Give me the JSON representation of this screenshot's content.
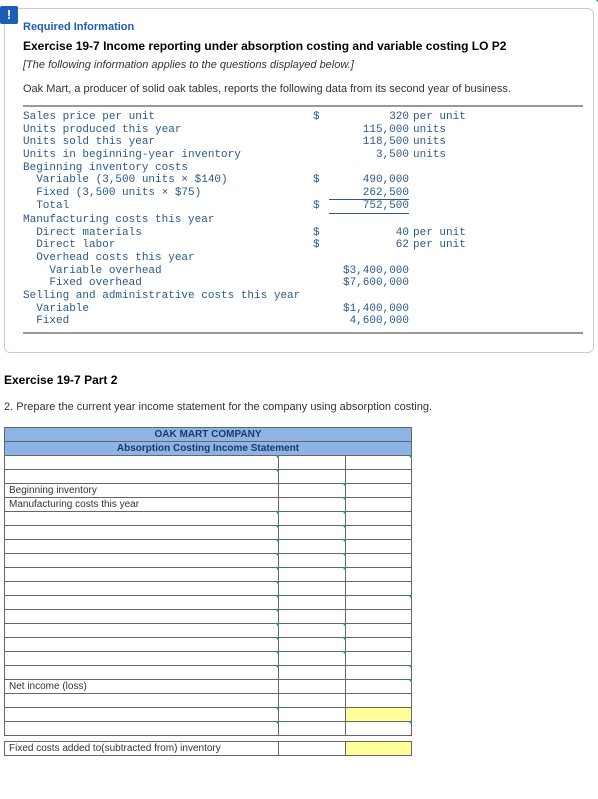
{
  "header": {
    "required": "Required Information",
    "title": "Exercise 19-7 Income reporting under absorption costing and variable costing LO P2",
    "note": "[The following information applies to the questions displayed below.]",
    "intro": "Oak Mart, a producer of solid oak tables, reports the following data from its second year of business."
  },
  "data": {
    "rows": [
      {
        "label": "Sales price per unit",
        "sym": "$",
        "val": "320",
        "unit": "per unit"
      },
      {
        "label": "Units produced this year",
        "sym": "",
        "val": "115,000",
        "unit": "units"
      },
      {
        "label": "Units sold this year",
        "sym": "",
        "val": "118,500",
        "unit": "units"
      },
      {
        "label": "Units in beginning-year inventory",
        "sym": "",
        "val": "3,500",
        "unit": "units"
      },
      {
        "label": "Beginning inventory costs",
        "sym": "",
        "val": "",
        "unit": ""
      },
      {
        "label": "  Variable (3,500 units × $140)",
        "sym": "$",
        "val": "490,000",
        "unit": ""
      },
      {
        "label": "  Fixed (3,500 units × $75)",
        "sym": "",
        "val": "262,500",
        "unit": "",
        "uline": true
      },
      {
        "label": "  Total",
        "sym": "$",
        "val": "752,500",
        "unit": "",
        "uline": true
      },
      {
        "label": "Manufacturing costs this year",
        "sym": "",
        "val": "",
        "unit": ""
      },
      {
        "label": "  Direct materials",
        "sym": "$",
        "val": "40",
        "unit": "per unit"
      },
      {
        "label": "  Direct labor",
        "sym": "$",
        "val": "62",
        "unit": "per unit"
      },
      {
        "label": "  Overhead costs this year",
        "sym": "",
        "val": "",
        "unit": ""
      },
      {
        "label": "    Variable overhead",
        "sym": "",
        "val": "$3,400,000",
        "unit": ""
      },
      {
        "label": "    Fixed overhead",
        "sym": "",
        "val": "$7,600,000",
        "unit": ""
      },
      {
        "label": "Selling and administrative costs this year",
        "sym": "",
        "val": "",
        "unit": ""
      },
      {
        "label": "  Variable",
        "sym": "",
        "val": "$1,400,000",
        "unit": ""
      },
      {
        "label": "  Fixed",
        "sym": "",
        "val": "4,600,000",
        "unit": ""
      }
    ]
  },
  "part2": {
    "title": "Exercise 19-7 Part 2",
    "instruction": "2. Prepare the current year income statement for the company using absorption costing."
  },
  "statement": {
    "company": "OAK MART COMPANY",
    "subtitle": "Absorption Costing Income Statement",
    "labels": {
      "beg_inv": "Beginning inventory",
      "mfg": "Manufacturing costs this year",
      "net": "Net income (loss)",
      "fixed": "Fixed costs added to(subtracted from) inventory"
    }
  },
  "colors": {
    "blue_header": "#8eb4e3",
    "link_blue": "#1a5eb5",
    "data_text": "#2a5a8a",
    "highlight": "#ffff99",
    "tick": "#1a9e60"
  }
}
